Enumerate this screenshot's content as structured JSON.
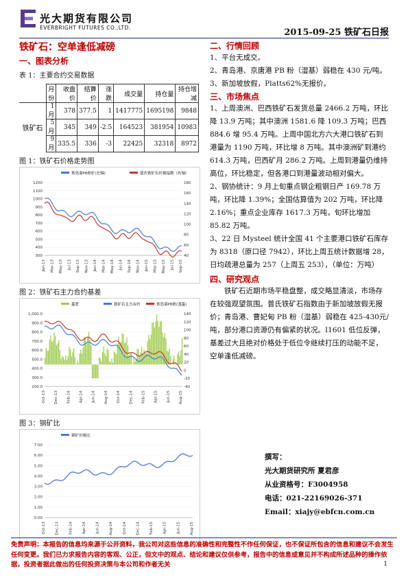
{
  "header": {
    "company_cn": "光大期货有限公司",
    "company_en": "EVERBRIGHT FUTURES CO.,LTD.",
    "date_title": "2015-09-25 铁矿石日报"
  },
  "left": {
    "main_title": "铁矿石：空单逢低减磅",
    "section1": "一、图表分析",
    "table_caption": "表 1：主要合约交易数据",
    "table": {
      "headers": [
        "月份",
        "收盘价",
        "结算价",
        "涨跌",
        "成交量",
        "持仓量",
        "持仓增减"
      ],
      "product": "铁矿石",
      "rows": [
        [
          "1月",
          "378",
          "377.5",
          "1",
          "1417775",
          "1695198",
          "9848"
        ],
        [
          "5月",
          "345",
          "349",
          "-2.5",
          "164523",
          "381954",
          "10983"
        ],
        [
          "9月",
          "335.5",
          "336",
          "-3",
          "22425",
          "32318",
          "8972"
        ]
      ]
    },
    "fig1_caption": "图 1：铁矿石价格走势图",
    "fig2_caption": "图 2：铁矿石主力合约基差",
    "fig3_caption": "图 3：钢矿比"
  },
  "right": {
    "section2": "二、行情回顾",
    "review": [
      "1、平台无成交。",
      "2、青岛港、京唐港 PB 粉（湿基）弱稳在 430 元/吨。",
      "3、新加坡放假，Platts62%无报价。"
    ],
    "section3": "三、市场焦点",
    "focus": [
      "1、上周澳洲、巴西铁矿石发货总量 2466.2 万吨，环比降 13.9 万吨；其中澳洲 1581.6 降 109.3 万吨；巴西 884.6 增 95.4 万吨。上周中国北方六大港口铁矿石到港量为 1190 万吨，环比增 8 万吨。其中澳洲矿到港约 614.3 万吨，巴西矿月 286.2 万吨。上周到港量仍维持高位，环比稳定，但各港口到港量波动相对偏大。",
      "2、钢协统计：9 月上旬重点钢企粗钢日产 169.78 万吨，环比降 1.39%；全国估算值为 202 万吨，环比降 2.16%；重点企业库存 1617.3 万吨，旬环比增加 85.82 万吨。",
      "3、22 日 Mysteel 统计全国 41 个主要港口铁矿石库存为 8318（原口径 7942），环比上周五统计数据增 28，日均疏港总量为 257（上周五 253），（单位：万吨）"
    ],
    "section4": "四、研究观点",
    "view": "铁矿石近期市场平稳盘整，成交略显清淡，市场存在较强观望氛围。普氏铁矿石指数由于新加坡放假无报价；青岛港、曹妃甸 PB 粉（湿基）弱稳在 425-430元/吨，部分港口资源仍有偏紧的状况。I1601 低位反弹，基差过大且绝对价格处于低位令继续打压的动能不足，空单逢低减磅。"
  },
  "author": {
    "label": "撰写：",
    "name": "光大期货研究所 夏君彦",
    "license": "从业资格号：F3004958",
    "phone": "电话：021-22169026-371",
    "email": "Email：xiajy@ebfcn.com.cn"
  },
  "footer": {
    "disclaimer": "免责声明：本报告的信息均来源于公开资料，我公司对这些信息的准确性和完整性不作任何保证，也不保证所包含的信息和建议不会发生任何变更。我们已力求报告内容的客观、公正，但文中的观点、结论和建议仅供参考，报告中的信息或意见并不构成所述品种的操作依据，投资者据此做出的任何投资决策与本公司和作者无关",
    "page": "1"
  },
  "charts": [
    {
      "type": "line",
      "legend": [
        "青岛港PB粉矿(左轴)",
        "普氏铁矿石价格指数（右轴）"
      ],
      "colors": [
        "#4a78d2",
        "#c0392b"
      ],
      "y_ticks": [
        "1200",
        "1100",
        "1000",
        "900",
        "800",
        "700",
        "600",
        "500",
        "400",
        "300"
      ],
      "y2_ticks": [
        "180",
        "160",
        "140",
        "120",
        "100",
        "80",
        "60",
        "40"
      ],
      "x_ticks": [
        "Jan-13",
        "Mar-13",
        "May-13",
        "Jul-13",
        "Sep-13",
        "Nov-13",
        "Jan-14",
        "Mar-14",
        "May-14",
        "Jul-14",
        "Sep-14",
        "Nov-14",
        "Jan-15",
        "Mar-15",
        "May-15",
        "Jul-15",
        "Sep-15"
      ]
    },
    {
      "type": "bar+line",
      "legend": [
        "基差",
        "铁矿石主力合约",
        "青岛港PB粉(湿基)"
      ],
      "colors": [
        "#9dc94a",
        "#4a78d2",
        "#c0392b"
      ],
      "y_ticks": [
        "1,000.0",
        "900.0",
        "800.0",
        "700.0",
        "600.0",
        "500.0",
        "400.0",
        "300.0",
        "200.0"
      ],
      "y2_ticks": [
        "140",
        "120",
        "100",
        "80",
        "60",
        "40",
        "20",
        "0",
        "-20",
        "-40"
      ],
      "x_ticks": [
        "Oct-13",
        "Dec-13",
        "Feb-14",
        "Apr-14",
        "Jun-14",
        "Aug-14",
        "Oct-14",
        "Dec-14",
        "Feb-15",
        "Apr-15",
        "Jun-15",
        "Aug-15"
      ]
    },
    {
      "type": "line",
      "legend": [
        "钢矿价格比"
      ],
      "colors": [
        "#4a78d2"
      ],
      "y_ticks": [
        "7.00",
        "6.00",
        "5.00",
        "4.00",
        "3.00",
        "2.00",
        "1.00",
        "0.00"
      ],
      "x_ticks": [
        "Oct-13",
        "Dec-13",
        "Feb-14",
        "Apr-14",
        "Jun-14",
        "Aug-14",
        "Oct-14",
        "Dec-14",
        "Feb-15",
        "Apr-15",
        "Jun-15",
        "Aug-15"
      ]
    }
  ]
}
